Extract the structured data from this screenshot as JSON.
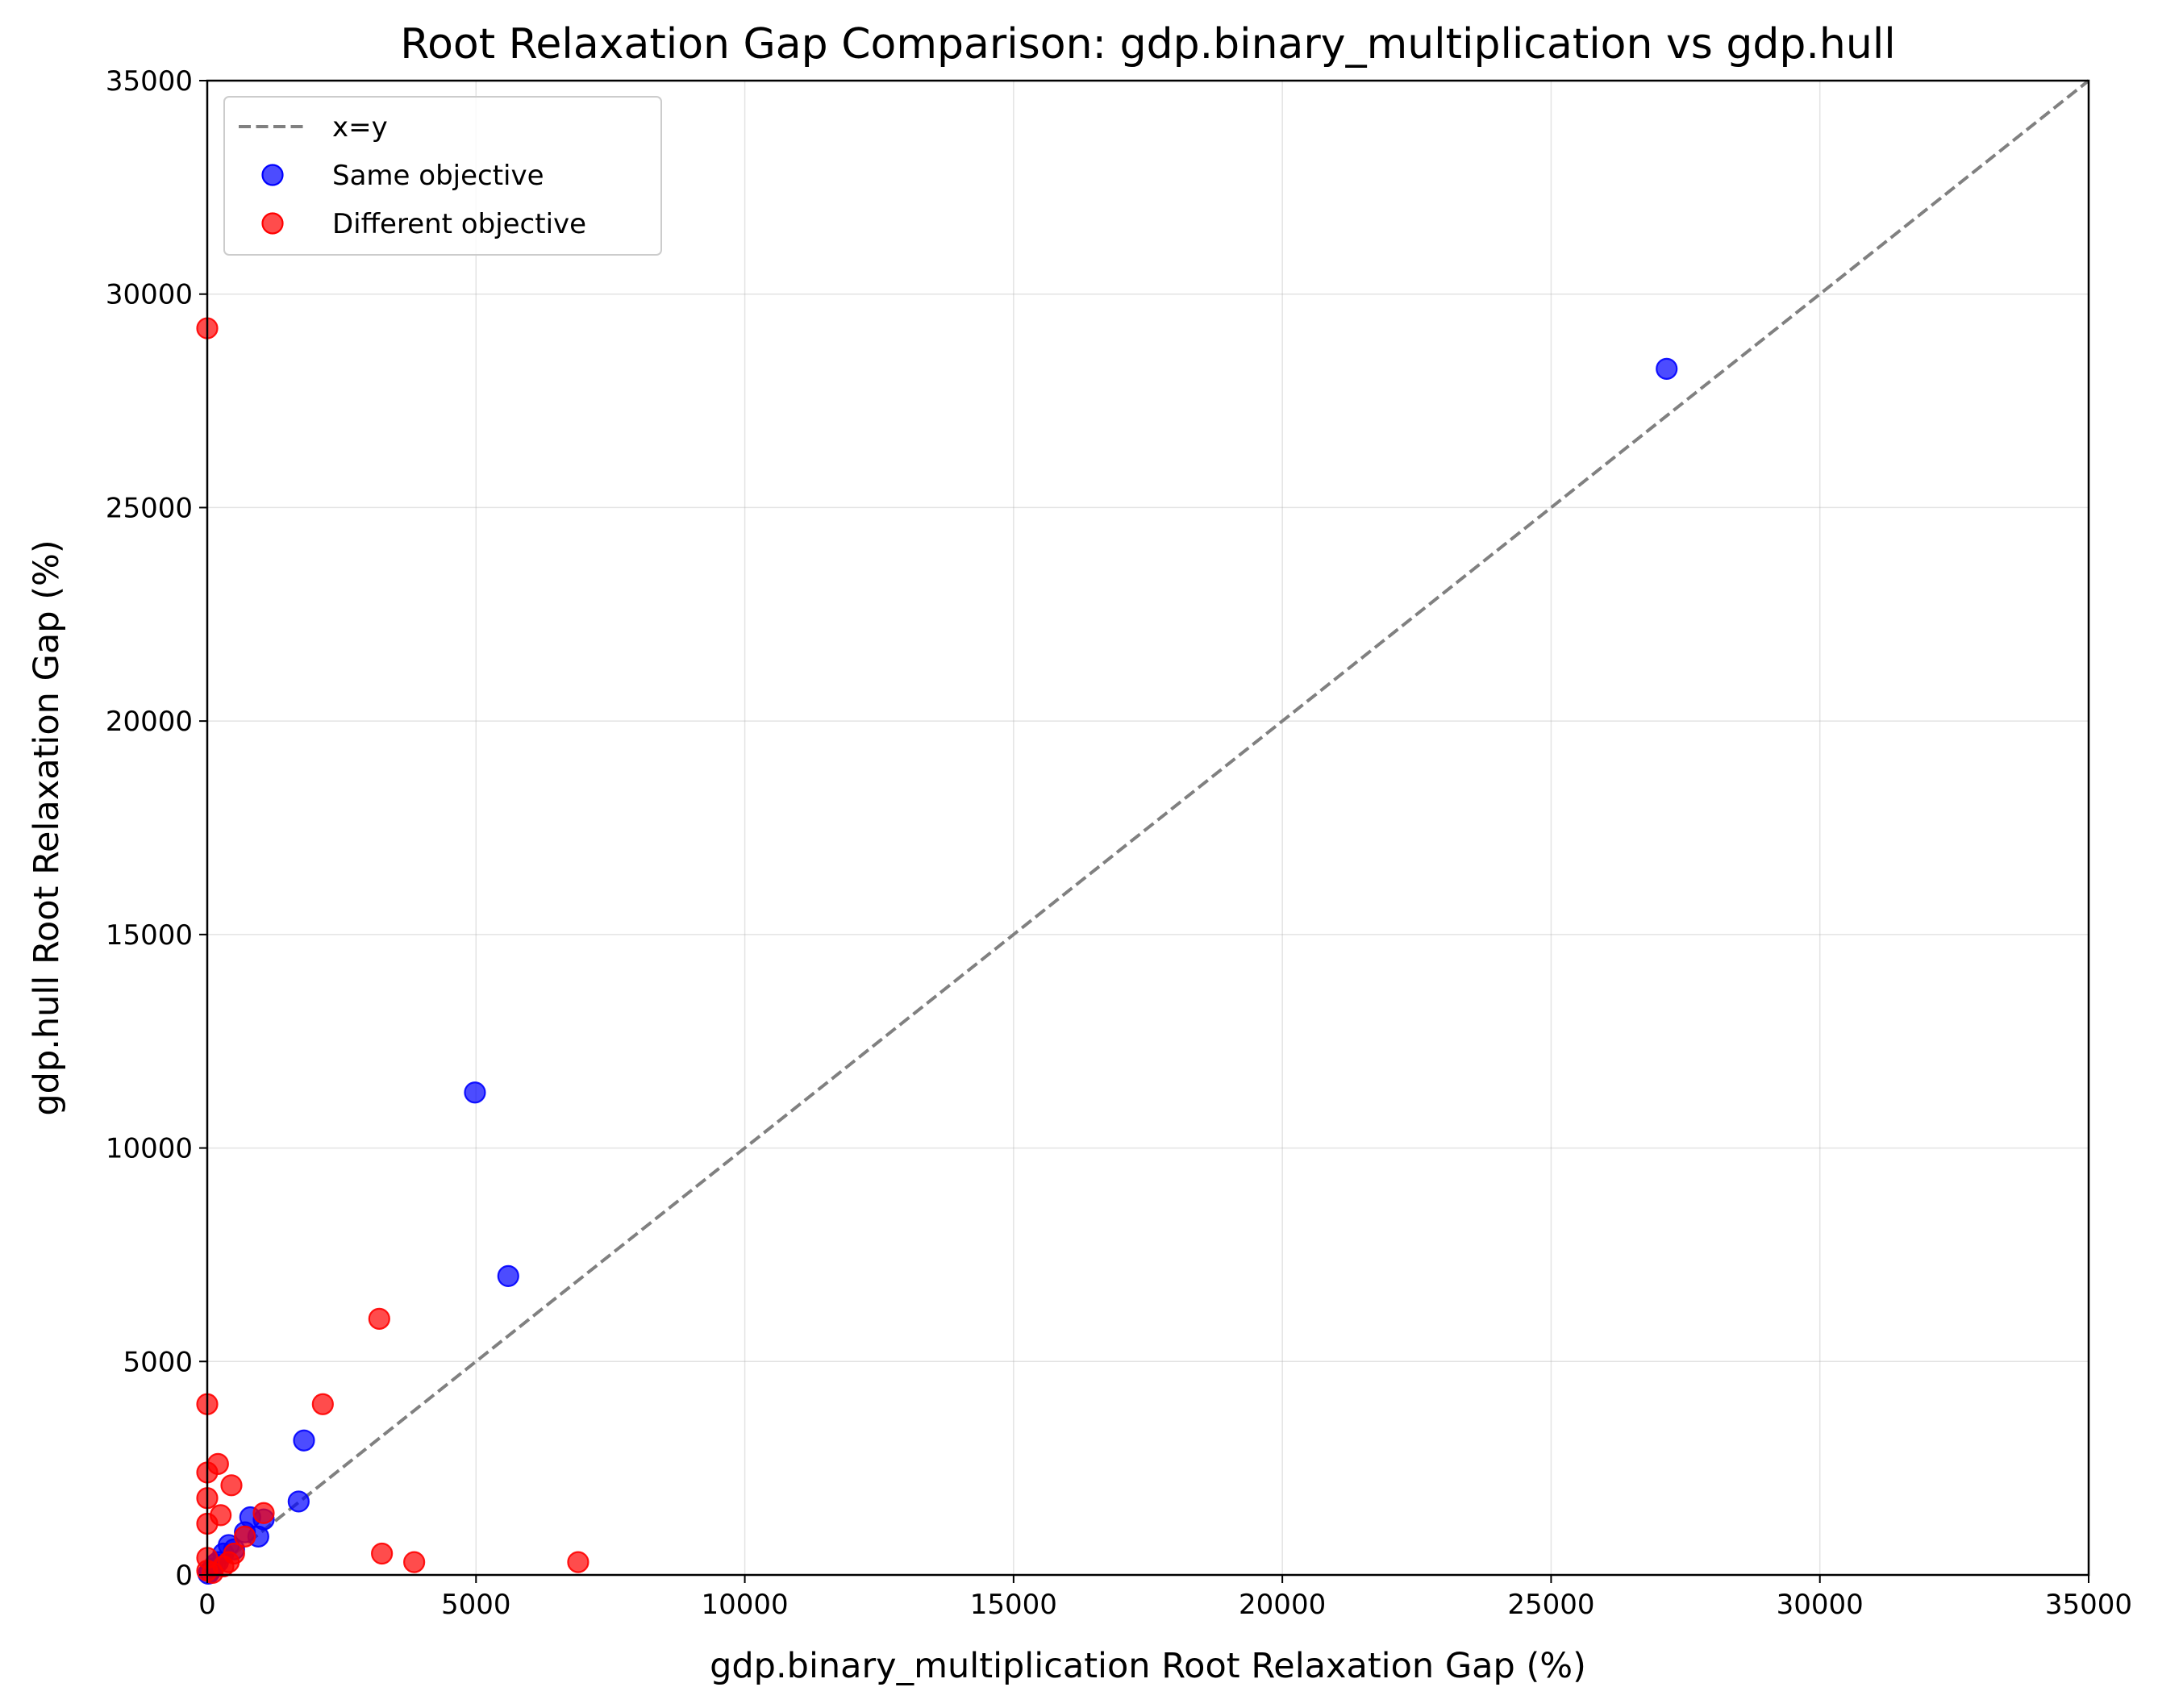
{
  "chart_data": {
    "type": "scatter",
    "title": "Root Relaxation Gap Comparison: gdp.binary_multiplication vs gdp.hull",
    "xlabel": "gdp.binary_multiplication Root Relaxation Gap (%)",
    "ylabel": "gdp.hull Root Relaxation Gap (%)",
    "xlim": [
      0,
      35000
    ],
    "ylim": [
      0,
      35000
    ],
    "xticks": [
      "0",
      "5000",
      "10000",
      "15000",
      "20000",
      "25000",
      "30000",
      "35000"
    ],
    "yticks": [
      "0",
      "5000",
      "10000",
      "15000",
      "20000",
      "25000",
      "30000",
      "35000"
    ],
    "grid": true,
    "legend_position": "top-left",
    "reference_line": {
      "name": "x=y",
      "color": "#808080",
      "style": "dashed"
    },
    "series": [
      {
        "name": "Same objective",
        "color": "#0000ff",
        "points": [
          [
            27150,
            28250
          ],
          [
            4980,
            11300
          ],
          [
            5600,
            7000
          ],
          [
            1800,
            3150
          ],
          [
            1700,
            1720
          ],
          [
            1050,
            1300
          ],
          [
            950,
            900
          ],
          [
            800,
            1350
          ],
          [
            700,
            1000
          ],
          [
            500,
            600
          ],
          [
            400,
            700
          ],
          [
            300,
            500
          ],
          [
            200,
            300
          ],
          [
            150,
            250
          ],
          [
            100,
            150
          ],
          [
            50,
            80
          ],
          [
            20,
            30
          ]
        ]
      },
      {
        "name": "Different objective",
        "color": "#ff0000",
        "points": [
          [
            0,
            29200
          ],
          [
            0,
            4000
          ],
          [
            0,
            2400
          ],
          [
            0,
            1800
          ],
          [
            0,
            1200
          ],
          [
            0,
            400
          ],
          [
            0,
            100
          ],
          [
            200,
            2600
          ],
          [
            250,
            1400
          ],
          [
            450,
            2100
          ],
          [
            2150,
            4000
          ],
          [
            3200,
            6000
          ],
          [
            3250,
            500
          ],
          [
            3850,
            300
          ],
          [
            6900,
            300
          ],
          [
            1050,
            1450
          ],
          [
            700,
            900
          ],
          [
            500,
            500
          ],
          [
            400,
            300
          ],
          [
            300,
            200
          ],
          [
            100,
            50
          ]
        ]
      }
    ]
  }
}
